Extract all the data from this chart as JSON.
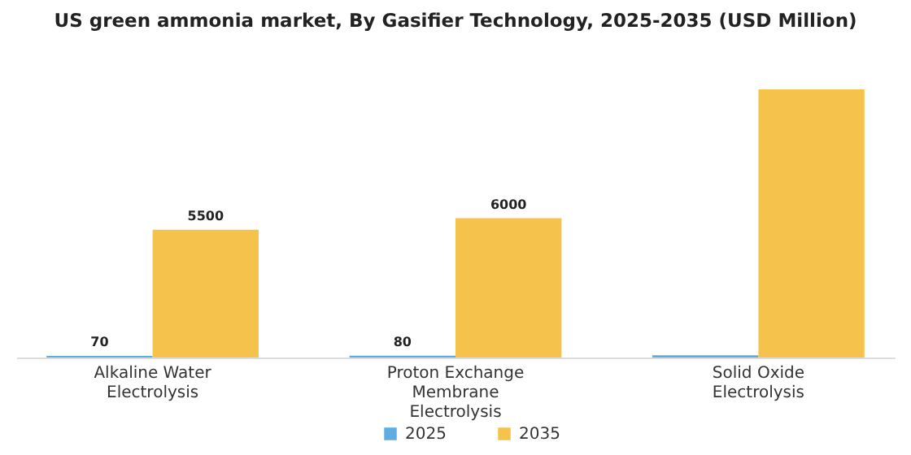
{
  "chart_data": {
    "type": "bar",
    "title": "US green ammonia market, By Gasifier Technology, 2025-2035 (USD Million)",
    "categories": [
      "Alkaline Water Electrolysis",
      "Proton Exchange Membrane Electrolysis",
      "Solid Oxide Electrolysis"
    ],
    "series": [
      {
        "name": "2025",
        "color": "#5dade2",
        "values": [
          70,
          80,
          100
        ],
        "value_labels": [
          "70",
          "80",
          null
        ]
      },
      {
        "name": "2035",
        "color": "#f5c34c",
        "values": [
          5500,
          6000,
          11550
        ],
        "value_labels": [
          "5500",
          "6000",
          null
        ]
      }
    ],
    "grid": false,
    "legend": "bottom"
  }
}
